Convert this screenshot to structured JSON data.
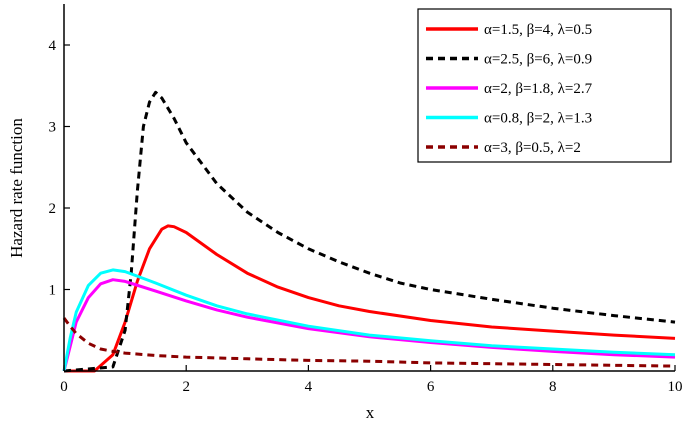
{
  "chart_data": {
    "type": "line",
    "title": "",
    "xlabel": "x",
    "ylabel": "Hazard rate function",
    "xlim": [
      0,
      10
    ],
    "ylim": [
      0,
      4.5
    ],
    "x_ticks": [
      0,
      2,
      4,
      6,
      8,
      10
    ],
    "y_ticks": [
      1,
      2,
      3,
      4
    ],
    "grid": false,
    "legend_position": "top-right",
    "series": [
      {
        "name": "α=1.5, β=4,  λ=0.5",
        "color": "#ff0000",
        "dash": "solid",
        "points": [
          [
            0,
            0
          ],
          [
            0.5,
            0
          ],
          [
            0.8,
            0.2
          ],
          [
            1.0,
            0.6
          ],
          [
            1.2,
            1.1
          ],
          [
            1.4,
            1.5
          ],
          [
            1.6,
            1.74
          ],
          [
            1.7,
            1.78
          ],
          [
            1.8,
            1.77
          ],
          [
            2.0,
            1.7
          ],
          [
            2.5,
            1.43
          ],
          [
            3.0,
            1.2
          ],
          [
            3.5,
            1.03
          ],
          [
            4.0,
            0.9
          ],
          [
            4.5,
            0.8
          ],
          [
            5.0,
            0.73
          ],
          [
            6.0,
            0.62
          ],
          [
            7.0,
            0.54
          ],
          [
            8.0,
            0.49
          ],
          [
            9.0,
            0.44
          ],
          [
            10.0,
            0.4
          ]
        ]
      },
      {
        "name": "α=2.5, β=6,  λ=0.9",
        "color": "#000000",
        "dash": "dashed",
        "points": [
          [
            0,
            0
          ],
          [
            0.8,
            0.05
          ],
          [
            1.0,
            0.5
          ],
          [
            1.1,
            1.2
          ],
          [
            1.2,
            2.2
          ],
          [
            1.3,
            3.0
          ],
          [
            1.4,
            3.3
          ],
          [
            1.5,
            3.42
          ],
          [
            1.6,
            3.35
          ],
          [
            1.8,
            3.1
          ],
          [
            2.0,
            2.8
          ],
          [
            2.5,
            2.3
          ],
          [
            3.0,
            1.95
          ],
          [
            3.5,
            1.7
          ],
          [
            4.0,
            1.5
          ],
          [
            4.5,
            1.34
          ],
          [
            5.0,
            1.2
          ],
          [
            5.5,
            1.08
          ],
          [
            6.0,
            1.0
          ],
          [
            7.0,
            0.88
          ],
          [
            8.0,
            0.77
          ],
          [
            9.0,
            0.68
          ],
          [
            10.0,
            0.6
          ]
        ]
      },
      {
        "name": "α=2, β=1.8,  λ=2.7",
        "color": "#ff00ff",
        "dash": "solid",
        "points": [
          [
            0,
            0
          ],
          [
            0.1,
            0.3
          ],
          [
            0.2,
            0.6
          ],
          [
            0.4,
            0.9
          ],
          [
            0.6,
            1.07
          ],
          [
            0.8,
            1.12
          ],
          [
            1.0,
            1.1
          ],
          [
            1.5,
            0.98
          ],
          [
            2.0,
            0.86
          ],
          [
            2.5,
            0.75
          ],
          [
            3.0,
            0.66
          ],
          [
            4.0,
            0.52
          ],
          [
            5.0,
            0.42
          ],
          [
            6.0,
            0.35
          ],
          [
            7.0,
            0.29
          ],
          [
            8.0,
            0.24
          ],
          [
            9.0,
            0.2
          ],
          [
            10.0,
            0.17
          ]
        ]
      },
      {
        "name": "α=0.8, β=2,  λ=1.3",
        "color": "#00ffff",
        "dash": "solid",
        "points": [
          [
            0,
            0
          ],
          [
            0.1,
            0.4
          ],
          [
            0.2,
            0.72
          ],
          [
            0.4,
            1.05
          ],
          [
            0.6,
            1.2
          ],
          [
            0.8,
            1.24
          ],
          [
            1.0,
            1.22
          ],
          [
            1.5,
            1.08
          ],
          [
            2.0,
            0.93
          ],
          [
            2.5,
            0.8
          ],
          [
            3.0,
            0.7
          ],
          [
            4.0,
            0.55
          ],
          [
            5.0,
            0.44
          ],
          [
            6.0,
            0.37
          ],
          [
            7.0,
            0.31
          ],
          [
            8.0,
            0.27
          ],
          [
            9.0,
            0.23
          ],
          [
            10.0,
            0.2
          ]
        ]
      },
      {
        "name": "α=3, β=0.5,  λ=2",
        "color": "#8b0000",
        "dash": "dashed",
        "points": [
          [
            0,
            0.65
          ],
          [
            0.1,
            0.55
          ],
          [
            0.2,
            0.46
          ],
          [
            0.4,
            0.34
          ],
          [
            0.6,
            0.27
          ],
          [
            0.8,
            0.24
          ],
          [
            1.0,
            0.22
          ],
          [
            1.5,
            0.19
          ],
          [
            2.0,
            0.17
          ],
          [
            3.0,
            0.15
          ],
          [
            4.0,
            0.13
          ],
          [
            5.0,
            0.12
          ],
          [
            6.0,
            0.1
          ],
          [
            7.0,
            0.09
          ],
          [
            8.0,
            0.08
          ],
          [
            9.0,
            0.07
          ],
          [
            10.0,
            0.06
          ]
        ]
      }
    ]
  }
}
